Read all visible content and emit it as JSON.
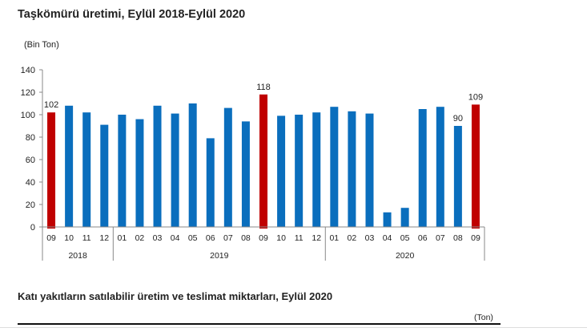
{
  "header": {
    "title": "Taşkömürü üretimi, Eylül 2018-Eylül 2020",
    "unit": "(Bin Ton)"
  },
  "chart_data": {
    "type": "bar",
    "title": "Taşkömürü üretimi, Eylül 2018-Eylül 2020",
    "ylabel": "(Bin Ton)",
    "xlabel": "",
    "ylim": [
      0,
      140
    ],
    "yticks": [
      0,
      20,
      40,
      60,
      80,
      100,
      120,
      140
    ],
    "grid": false,
    "legend": "none",
    "categories": [
      "09",
      "10",
      "11",
      "12",
      "01",
      "02",
      "03",
      "04",
      "05",
      "06",
      "07",
      "08",
      "09",
      "10",
      "11",
      "12",
      "01",
      "02",
      "03",
      "04",
      "05",
      "06",
      "07",
      "08",
      "09"
    ],
    "years": [
      {
        "label": "2018",
        "count": 4
      },
      {
        "label": "2019",
        "count": 12
      },
      {
        "label": "2020",
        "count": 9
      }
    ],
    "values": [
      102,
      108,
      102,
      91,
      100,
      96,
      108,
      101,
      110,
      79,
      106,
      94,
      118,
      99,
      100,
      102,
      107,
      103,
      101,
      13,
      17,
      105,
      107,
      90,
      109
    ],
    "highlight_indices": [
      0,
      12,
      24
    ],
    "data_labels": [
      {
        "index": 0,
        "text": "102"
      },
      {
        "index": 12,
        "text": "118"
      },
      {
        "index": 23,
        "text": "90"
      },
      {
        "index": 24,
        "text": "109"
      }
    ],
    "colors": {
      "normal": "#0a6ebd",
      "highlight": "#c00000",
      "axis": "#888888",
      "text": "#222222"
    }
  },
  "footer": {
    "subtitle": "Katı yakıtların satılabilir üretim ve teslimat miktarları, Eylül 2020",
    "unit": "(Ton)"
  }
}
